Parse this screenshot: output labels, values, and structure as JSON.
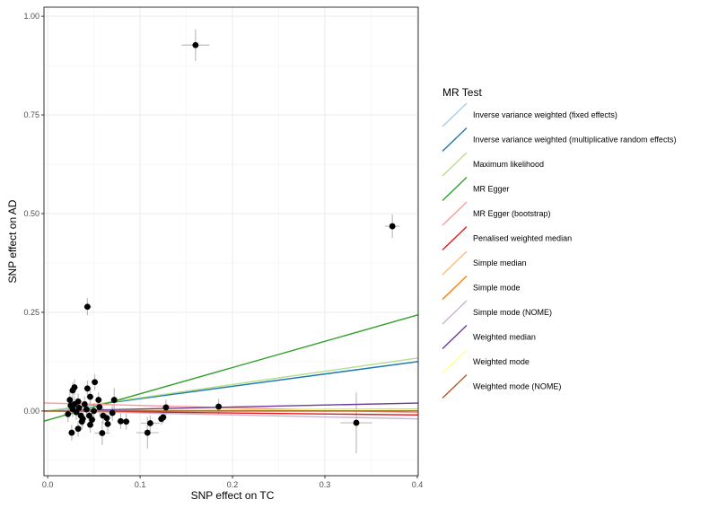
{
  "chart_data": {
    "type": "scatter",
    "xlabel": "SNP effect on TC",
    "ylabel": "SNP effect on AD",
    "xlim": [
      -0.004,
      0.401
    ],
    "ylim": [
      -0.164,
      1.023
    ],
    "xticks": [
      0.0,
      0.1,
      0.2,
      0.3,
      0.4
    ],
    "xtick_labels": [
      "0.0",
      "0.1",
      "0.2",
      "0.3",
      "0.4"
    ],
    "yticks": [
      0.0,
      0.25,
      0.5,
      0.75,
      1.0
    ],
    "ytick_labels": [
      "0.00",
      "0.25",
      "0.50",
      "0.75",
      "1.00"
    ],
    "grid": true,
    "legend_position": "right",
    "legend_title": "MR Test",
    "points": [
      {
        "x": 0.16,
        "y": 0.927,
        "se_x": 0.015,
        "se_y": 0.04
      },
      {
        "x": 0.373,
        "y": 0.468,
        "se_x": 0.008,
        "se_y": 0.03
      },
      {
        "x": 0.043,
        "y": 0.264,
        "se_x": 0.004,
        "se_y": 0.022
      },
      {
        "x": 0.334,
        "y": -0.03,
        "se_x": 0.017,
        "se_y": 0.077
      },
      {
        "x": 0.185,
        "y": 0.011,
        "se_x": 0.004,
        "se_y": 0.02
      },
      {
        "x": 0.128,
        "y": 0.009,
        "se_x": 0.004,
        "se_y": 0.02
      },
      {
        "x": 0.051,
        "y": 0.073,
        "se_x": 0.004,
        "se_y": 0.02
      },
      {
        "x": 0.029,
        "y": 0.06,
        "se_x": 0.004,
        "se_y": 0.02
      },
      {
        "x": 0.027,
        "y": 0.052,
        "se_x": 0.004,
        "se_y": 0.02
      },
      {
        "x": 0.043,
        "y": 0.057,
        "se_x": 0.004,
        "se_y": 0.02
      },
      {
        "x": 0.046,
        "y": 0.036,
        "se_x": 0.004,
        "se_y": 0.02
      },
      {
        "x": 0.024,
        "y": 0.028,
        "se_x": 0.004,
        "se_y": 0.02
      },
      {
        "x": 0.055,
        "y": 0.028,
        "se_x": 0.004,
        "se_y": 0.02
      },
      {
        "x": 0.072,
        "y": 0.028,
        "se_x": 0.004,
        "se_y": 0.03
      },
      {
        "x": 0.026,
        "y": -0.055,
        "se_x": 0.004,
        "se_y": 0.02
      },
      {
        "x": 0.033,
        "y": -0.045,
        "se_x": 0.004,
        "se_y": 0.02
      },
      {
        "x": 0.059,
        "y": -0.056,
        "se_x": 0.008,
        "se_y": 0.03
      },
      {
        "x": 0.046,
        "y": -0.035,
        "se_x": 0.004,
        "se_y": 0.02
      },
      {
        "x": 0.065,
        "y": -0.033,
        "se_x": 0.004,
        "se_y": 0.02
      },
      {
        "x": 0.079,
        "y": -0.026,
        "se_x": 0.004,
        "se_y": 0.02
      },
      {
        "x": 0.085,
        "y": -0.027,
        "se_x": 0.004,
        "se_y": 0.02
      },
      {
        "x": 0.108,
        "y": -0.055,
        "se_x": 0.012,
        "se_y": 0.04
      },
      {
        "x": 0.111,
        "y": -0.031,
        "se_x": 0.01,
        "se_y": 0.02
      },
      {
        "x": 0.123,
        "y": -0.02,
        "se_x": 0.004,
        "se_y": 0.015
      },
      {
        "x": 0.125,
        "y": -0.016,
        "se_x": 0.004,
        "se_y": 0.015
      },
      {
        "x": 0.036,
        "y": -0.012,
        "se_x": 0.004,
        "se_y": 0.02
      },
      {
        "x": 0.037,
        "y": -0.027,
        "se_x": 0.004,
        "se_y": 0.02
      },
      {
        "x": 0.06,
        "y": -0.012,
        "se_x": 0.004,
        "se_y": 0.02
      },
      {
        "x": 0.07,
        "y": -0.005,
        "se_x": 0.004,
        "se_y": 0.02
      },
      {
        "x": 0.05,
        "y": 0.0,
        "se_x": 0.004,
        "se_y": 0.02
      },
      {
        "x": 0.022,
        "y": -0.008,
        "se_x": 0.004,
        "se_y": 0.02
      },
      {
        "x": 0.029,
        "y": 0.017,
        "se_x": 0.004,
        "se_y": 0.02
      },
      {
        "x": 0.04,
        "y": 0.017,
        "se_x": 0.004,
        "se_y": 0.02
      },
      {
        "x": 0.056,
        "y": 0.01,
        "se_x": 0.004,
        "se_y": 0.02
      },
      {
        "x": 0.027,
        "y": 0.005,
        "se_x": 0.004,
        "se_y": 0.02
      },
      {
        "x": 0.045,
        "y": -0.012,
        "se_x": 0.004,
        "se_y": 0.02
      },
      {
        "x": 0.031,
        "y": -0.003,
        "se_x": 0.004,
        "se_y": 0.02
      },
      {
        "x": 0.034,
        "y": 0.008,
        "se_x": 0.004,
        "se_y": 0.02
      },
      {
        "x": 0.038,
        "y": -0.02,
        "se_x": 0.004,
        "se_y": 0.02
      },
      {
        "x": 0.042,
        "y": 0.004,
        "se_x": 0.004,
        "se_y": 0.02
      },
      {
        "x": 0.064,
        "y": -0.018,
        "se_x": 0.004,
        "se_y": 0.02
      },
      {
        "x": 0.025,
        "y": 0.014,
        "se_x": 0.004,
        "se_y": 0.02
      },
      {
        "x": 0.048,
        "y": -0.022,
        "se_x": 0.004,
        "se_y": 0.02
      },
      {
        "x": 0.033,
        "y": 0.024,
        "se_x": 0.004,
        "se_y": 0.02
      }
    ],
    "series": [
      {
        "name": "Inverse variance weighted (fixed effects)",
        "color": "#A6CEE3",
        "intercept": 0,
        "slope": 0.3125
      },
      {
        "name": "Inverse variance weighted (multiplicative random effects)",
        "color": "#1F78B4",
        "intercept": 0,
        "slope": 0.3125
      },
      {
        "name": "Maximum likelihood",
        "color": "#B2DF8A",
        "intercept": 0,
        "slope": 0.335
      },
      {
        "name": "MR Egger",
        "color": "#33A02C",
        "intercept": -0.023,
        "slope": 0.665
      },
      {
        "name": "MR Egger (bootstrap)",
        "color": "#FB9A99",
        "intercept": 0.02,
        "slope": -0.06
      },
      {
        "name": "Penalised weighted median",
        "color": "#E31A1C",
        "intercept": 0,
        "slope": -0.025
      },
      {
        "name": "Simple median",
        "color": "#FDBF6F",
        "intercept": 0,
        "slope": 0.012
      },
      {
        "name": "Simple mode",
        "color": "#FF7F00",
        "intercept": 0,
        "slope": 0.01
      },
      {
        "name": "Simple mode (NOME)",
        "color": "#CAB2D6",
        "intercept": 0,
        "slope": -0.05
      },
      {
        "name": "Weighted median",
        "color": "#6A3D9A",
        "intercept": 0,
        "slope": 0.05
      },
      {
        "name": "Weighted mode",
        "color": "#FFFF99",
        "intercept": 0,
        "slope": 0.008
      },
      {
        "name": "Weighted mode (NOME)",
        "color": "#B15928",
        "intercept": 0,
        "slope": 0.0
      }
    ]
  }
}
